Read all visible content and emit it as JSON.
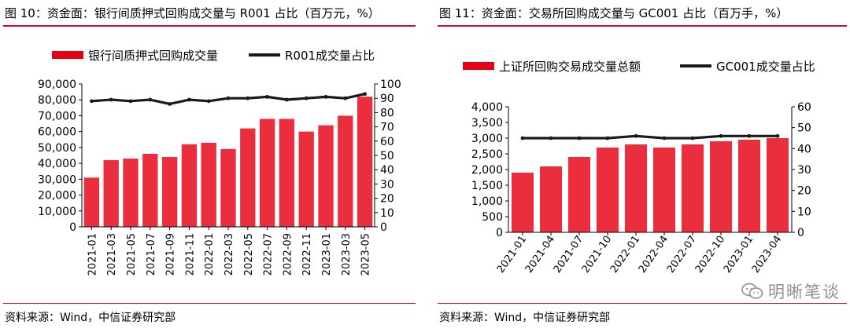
{
  "panels": [
    {
      "title": "图 10：资金面：银行间质押式回购成交量与 R001 占比（百万元，%）",
      "source": "资料来源：Wind，中信证券研究部"
    },
    {
      "title": "图 11：资金面：交易所回购成交量与 GC001 占比（百万手，%）",
      "source": "资料来源：Wind，中信证券研究部"
    }
  ],
  "watermark": {
    "text": "明晰笔谈",
    "icon": "wechat-icon"
  },
  "chart_data": [
    {
      "type": "bar",
      "title": "银行间质押式回购成交量与 R001 占比（百万元，%）",
      "colors": {
        "bar": "#e60012",
        "line": "#1a1a1a"
      },
      "categories": [
        "2021-01",
        "2021-03",
        "2021-05",
        "2021-07",
        "2021-09",
        "2021-11",
        "2022-01",
        "2022-03",
        "2022-05",
        "2022-07",
        "2022-09",
        "2022-11",
        "2023-01",
        "2023-03",
        "2023-05"
      ],
      "series": [
        {
          "name": "银行间质押式回购成交量",
          "type": "bar",
          "axis": "left",
          "values": [
            31000,
            42000,
            43000,
            46000,
            44000,
            52000,
            53000,
            49000,
            62000,
            68000,
            68000,
            60000,
            64000,
            70000,
            82000
          ]
        },
        {
          "name": "R001成交量占比",
          "type": "line",
          "axis": "right",
          "values": [
            88,
            89,
            88,
            89,
            86,
            89,
            88,
            90,
            90,
            91,
            89,
            90,
            91,
            90,
            93
          ]
        }
      ],
      "left_axis": {
        "min": 0,
        "max": 90000,
        "ticks": [
          "0",
          "10,000",
          "20,000",
          "30,000",
          "40,000",
          "50,000",
          "60,000",
          "70,000",
          "80,000",
          "90,000"
        ]
      },
      "right_axis": {
        "min": 0,
        "max": 100,
        "ticks": [
          "0",
          "10",
          "20",
          "30",
          "40",
          "50",
          "60",
          "70",
          "80",
          "90",
          "100"
        ]
      },
      "legend": "top"
    },
    {
      "type": "bar",
      "title": "交易所回购成交量与 GC001 占比（百万手，%）",
      "colors": {
        "bar": "#e60012",
        "line": "#1a1a1a"
      },
      "categories": [
        "2021-01",
        "2021-04",
        "2021-07",
        "2021-10",
        "2022-01",
        "2022-04",
        "2022-07",
        "2022-10",
        "2023-01",
        "2023-04"
      ],
      "series": [
        {
          "name": "上证所回购交易成交量总额",
          "type": "bar",
          "axis": "left",
          "values": [
            1900,
            2100,
            2400,
            2700,
            2800,
            2700,
            2800,
            2900,
            2950,
            3000
          ]
        },
        {
          "name": "GC001成交量占比",
          "type": "line",
          "axis": "right",
          "values": [
            45,
            45,
            45,
            45,
            46,
            45,
            45,
            46,
            46,
            46
          ]
        }
      ],
      "left_axis": {
        "min": 0,
        "max": 4000,
        "ticks": [
          "0",
          "500",
          "1,000",
          "1,500",
          "2,000",
          "2,500",
          "3,000",
          "3,500",
          "4,000"
        ]
      },
      "right_axis": {
        "min": 0,
        "max": 60,
        "ticks": [
          "0",
          "10",
          "20",
          "30",
          "40",
          "50",
          "60"
        ]
      },
      "legend": "top"
    }
  ]
}
